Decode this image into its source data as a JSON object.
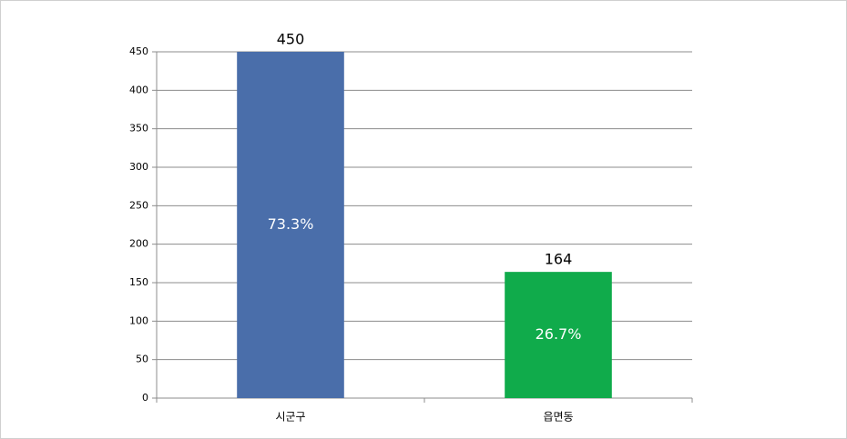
{
  "chart_data": {
    "type": "bar",
    "categories": [
      "시군구",
      "읍면동"
    ],
    "values": [
      450,
      164
    ],
    "percent_labels": [
      "73.3%",
      "26.7%"
    ],
    "colors": [
      "#4a6eaa",
      "#10ab4b"
    ],
    "ylim": [
      0,
      450
    ],
    "yticks": [
      0,
      50,
      100,
      150,
      200,
      250,
      300,
      350,
      400,
      450
    ],
    "grid": true
  }
}
